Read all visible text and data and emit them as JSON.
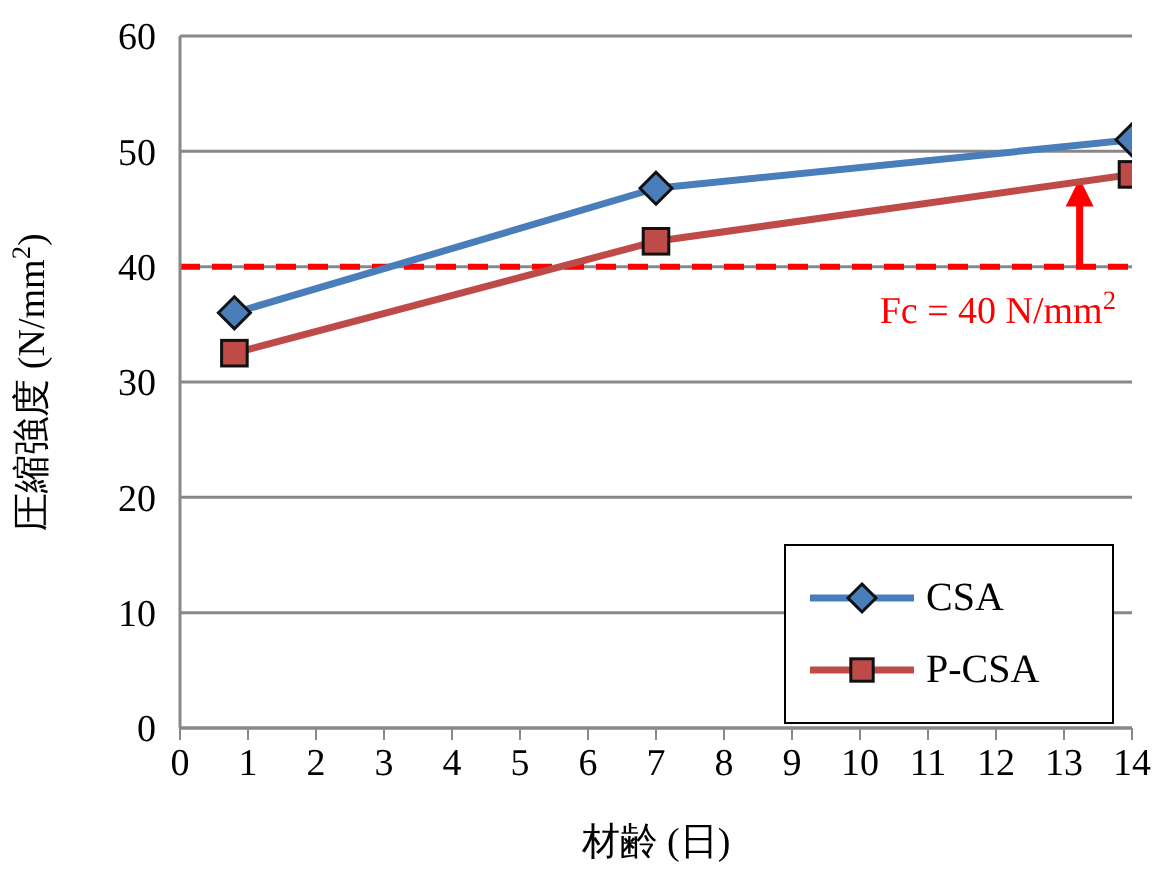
{
  "chart_data": {
    "type": "line",
    "xlabel": "材齢 (日)",
    "ylabel": "圧縮強度 (N/mm$^{2}$)",
    "series": [
      {
        "name": "CSA",
        "color": "#4a7ebb",
        "marker": "diamond",
        "x": [
          0.8,
          7,
          14
        ],
        "values": [
          36,
          46.8,
          51
        ]
      },
      {
        "name": "P-CSA",
        "color": "#be4b48",
        "marker": "square",
        "x": [
          0.8,
          7,
          14
        ],
        "values": [
          32.5,
          42.2,
          48
        ]
      }
    ],
    "xlim": [
      0,
      14
    ],
    "xticks": [
      0,
      1,
      2,
      3,
      4,
      5,
      6,
      7,
      8,
      9,
      10,
      11,
      12,
      13,
      14
    ],
    "ylim": [
      0,
      60
    ],
    "yticks": [
      0,
      10,
      20,
      30,
      40,
      50,
      60
    ],
    "ref_lines": [
      {
        "axis": "y",
        "value": 40,
        "label": "Fc = 40 N/mm$^{2}$",
        "color": "#ff0000",
        "line_style": "dashed"
      }
    ],
    "grid": "y",
    "legend": "bottom right",
    "line_style": "solid"
  }
}
